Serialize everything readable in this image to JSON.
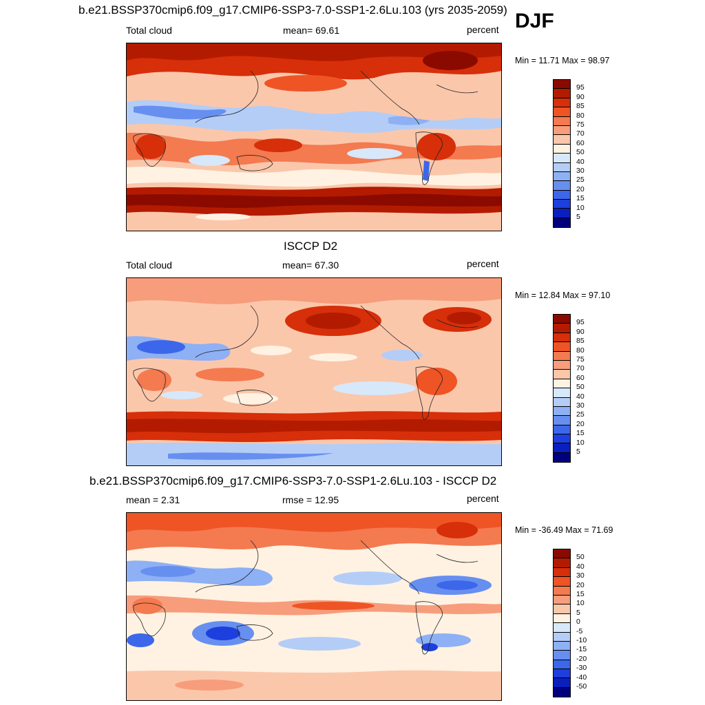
{
  "season": "DJF",
  "panels": [
    {
      "title": "b.e21.BSSP370cmip6.f09_g17.CMIP6-SSP3-7.0-SSP1-2.6Lu.103 (yrs 2035-2059)",
      "left_label": "Total cloud",
      "center_label": "mean=  69.61",
      "right_label": "percent",
      "minmax": "Min =  11.71 Max =  98.97",
      "colorbar_labels": [
        "95",
        "90",
        "85",
        "80",
        "75",
        "70",
        "60",
        "50",
        "40",
        "30",
        "25",
        "20",
        "15",
        "10",
        "5"
      ],
      "colorbar_colors": [
        "#8b0a00",
        "#b31b00",
        "#d62f0a",
        "#ef5425",
        "#f47a50",
        "#f79d7c",
        "#fbc7ab",
        "#fff2e2",
        "#d7e8fb",
        "#b3cdf7",
        "#8eb0f4",
        "#678ff0",
        "#3c67ea",
        "#1d3fdd",
        "#0a1fbd",
        "#00007f"
      ]
    },
    {
      "title": "ISCCP D2",
      "left_label": "Total cloud",
      "center_label": "mean=  67.30",
      "right_label": "percent",
      "minmax": "Min =  12.84 Max =  97.10",
      "colorbar_labels": [
        "95",
        "90",
        "85",
        "80",
        "75",
        "70",
        "60",
        "50",
        "40",
        "30",
        "25",
        "20",
        "15",
        "10",
        "5"
      ],
      "colorbar_colors": [
        "#8b0a00",
        "#b31b00",
        "#d62f0a",
        "#ef5425",
        "#f47a50",
        "#f79d7c",
        "#fbc7ab",
        "#fff2e2",
        "#d7e8fb",
        "#b3cdf7",
        "#8eb0f4",
        "#678ff0",
        "#3c67ea",
        "#1d3fdd",
        "#0a1fbd",
        "#00007f"
      ]
    },
    {
      "title": "b.e21.BSSP370cmip6.f09_g17.CMIP6-SSP3-7.0-SSP1-2.6Lu.103 - ISCCP D2",
      "left_label": "mean =   2.31",
      "center_label": "rmse =  12.95",
      "right_label": "percent",
      "minmax": "Min = -36.49 Max =  71.69",
      "colorbar_labels": [
        "50",
        "40",
        "30",
        "20",
        "15",
        "10",
        "5",
        "0",
        "-5",
        "-10",
        "-15",
        "-20",
        "-30",
        "-40",
        "-50"
      ],
      "colorbar_colors": [
        "#8b0a00",
        "#b31b00",
        "#d62f0a",
        "#ef5425",
        "#f47a50",
        "#f79d7c",
        "#fbc7ab",
        "#fff2e2",
        "#d7e8fb",
        "#b3cdf7",
        "#8eb0f4",
        "#678ff0",
        "#3c67ea",
        "#1d3fdd",
        "#0a1fbd",
        "#00007f"
      ]
    }
  ]
}
